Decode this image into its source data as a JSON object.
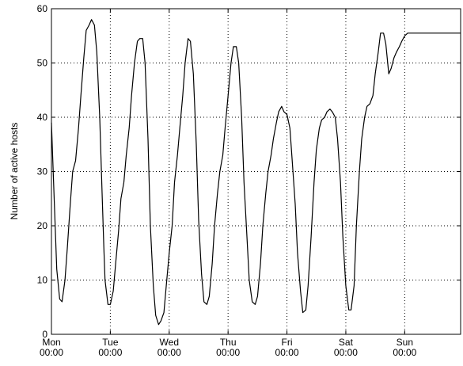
{
  "chart_data": {
    "type": "line",
    "title": "",
    "xlabel": "",
    "ylabel": "Number of active hosts",
    "ylim": [
      0,
      60
    ],
    "xlim": [
      0,
      6.95
    ],
    "yticks": [
      0,
      10,
      20,
      30,
      40,
      50,
      60
    ],
    "xticks": [
      {
        "x": 0,
        "day": "Mon",
        "time": "00:00"
      },
      {
        "x": 1,
        "day": "Tue",
        "time": "00:00"
      },
      {
        "x": 2,
        "day": "Wed",
        "time": "00:00"
      },
      {
        "x": 3,
        "day": "Thu",
        "time": "00:00"
      },
      {
        "x": 4,
        "day": "Fri",
        "time": "00:00"
      },
      {
        "x": 5,
        "day": "Sat",
        "time": "00:00"
      },
      {
        "x": 6,
        "day": "Sun",
        "time": "00:00"
      }
    ],
    "grid": true,
    "grid_style": "dotted",
    "line_color": "#000000",
    "series": [
      {
        "x": [
          0.0,
          0.05,
          0.09,
          0.14,
          0.18,
          0.23,
          0.27,
          0.32,
          0.36,
          0.41,
          0.46,
          0.5,
          0.55,
          0.59,
          0.64,
          0.68,
          0.73,
          0.77,
          0.82,
          0.86,
          0.89,
          0.91,
          0.96,
          1.0,
          1.05,
          1.09,
          1.14,
          1.18,
          1.23,
          1.27,
          1.32,
          1.36,
          1.41,
          1.46,
          1.5,
          1.55,
          1.59,
          1.64,
          1.68,
          1.73,
          1.77,
          1.82,
          1.86,
          1.91,
          1.95,
          2.0,
          2.05,
          2.09,
          2.14,
          2.18,
          2.23,
          2.27,
          2.32,
          2.36,
          2.41,
          2.46,
          2.5,
          2.55,
          2.59,
          2.64,
          2.68,
          2.73,
          2.77,
          2.82,
          2.86,
          2.91,
          2.95,
          3.0,
          3.05,
          3.09,
          3.14,
          3.18,
          3.23,
          3.27,
          3.32,
          3.36,
          3.41,
          3.46,
          3.5,
          3.55,
          3.59,
          3.64,
          3.68,
          3.73,
          3.77,
          3.82,
          3.86,
          3.91,
          3.95,
          4.0,
          4.05,
          4.09,
          4.14,
          4.18,
          4.23,
          4.27,
          4.32,
          4.36,
          4.41,
          4.46,
          4.5,
          4.55,
          4.59,
          4.64,
          4.68,
          4.73,
          4.77,
          4.82,
          4.86,
          4.91,
          4.95,
          5.0,
          5.05,
          5.09,
          5.14,
          5.18,
          5.23,
          5.27,
          5.32,
          5.36,
          5.41,
          5.46,
          5.5,
          5.55,
          5.59,
          5.64,
          5.68,
          5.73,
          5.77,
          5.82,
          5.86,
          5.91,
          5.95,
          6.0,
          6.05,
          6.09,
          6.14,
          6.18,
          6.23,
          6.27,
          6.32,
          6.36,
          6.41,
          6.46,
          6.5,
          6.55,
          6.59,
          6.64,
          6.68,
          6.73,
          6.77,
          6.82,
          6.86,
          6.91,
          6.95
        ],
        "values": [
          39,
          24,
          12,
          6.5,
          6,
          10,
          16,
          24,
          30,
          32,
          38,
          44,
          51,
          56,
          57,
          58,
          57,
          52,
          40,
          26,
          16,
          10,
          5.5,
          5.5,
          8,
          13,
          19,
          25,
          28,
          33,
          38,
          44,
          50,
          54,
          54.5,
          54.5,
          50,
          36,
          20,
          9,
          3.5,
          1.8,
          2.5,
          4,
          9,
          15,
          20,
          28,
          33,
          38,
          44,
          50,
          54.5,
          54,
          48,
          35,
          21,
          11,
          6,
          5.5,
          7,
          13,
          20,
          26,
          30,
          33,
          38,
          44,
          50,
          53,
          53,
          50,
          40,
          28,
          18,
          10,
          6,
          5.5,
          7,
          13,
          20,
          26,
          30,
          33,
          36,
          39,
          41,
          42,
          41,
          40.5,
          38,
          32,
          24,
          15,
          8,
          4,
          4.5,
          9,
          18,
          28,
          34,
          38,
          39.5,
          40,
          41,
          41.5,
          41,
          40,
          36,
          28,
          18,
          9,
          4.5,
          4.5,
          9,
          20,
          30,
          36,
          40,
          42,
          42.5,
          44,
          48,
          52,
          55.5,
          55.5,
          53.5,
          48,
          49,
          51,
          52,
          53,
          54,
          55,
          55.5,
          55.5,
          55.5,
          55.5,
          55.5,
          55.5,
          55.5,
          55.5,
          55.5,
          55.5,
          55.5,
          55.5,
          55.5,
          55.5,
          55.5,
          55.5,
          55.5,
          55.5,
          55.5,
          55.5,
          55.5
        ]
      }
    ]
  }
}
